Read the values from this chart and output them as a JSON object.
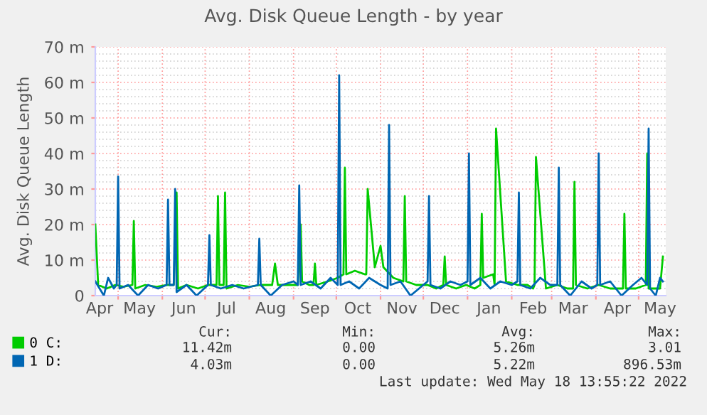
{
  "chart_data": {
    "type": "line",
    "title": "Avg. Disk Queue Length - by year",
    "ylabel": "Avg. Disk Queue Length",
    "xlim": [
      "2021-04-15",
      "2022-05-20"
    ],
    "xticks": [
      {
        "value": "2021-05-01",
        "label": null
      },
      {
        "value": "2021-06-01",
        "label": null
      },
      {
        "value": "2021-07-01",
        "label": null
      },
      {
        "value": "2021-08-01",
        "label": null
      },
      {
        "value": "2021-09-01",
        "label": null
      },
      {
        "value": "2021-10-01",
        "label": null
      },
      {
        "value": "2021-11-01",
        "label": null
      },
      {
        "value": "2021-12-01",
        "label": null
      },
      {
        "value": "2022-01-01",
        "label": null
      },
      {
        "value": "2022-02-01",
        "label": null
      },
      {
        "value": "2022-03-01",
        "label": null
      },
      {
        "value": "2022-04-01",
        "label": null
      },
      {
        "value": "2022-05-01",
        "label": null
      },
      {
        "value": "2021-04-18",
        "label": "Apr"
      },
      {
        "value": "2021-05-16",
        "label": "May"
      },
      {
        "value": "2021-06-16",
        "label": "Jun"
      },
      {
        "value": "2021-07-16",
        "label": "Jul"
      },
      {
        "value": "2021-08-16",
        "label": "Aug"
      },
      {
        "value": "2021-09-16",
        "label": "Sep"
      },
      {
        "value": "2021-10-16",
        "label": "Oct"
      },
      {
        "value": "2021-11-16",
        "label": "Nov"
      },
      {
        "value": "2021-12-16",
        "label": "Dec"
      },
      {
        "value": "2022-01-16",
        "label": "Jan"
      },
      {
        "value": "2022-02-16",
        "label": "Feb"
      },
      {
        "value": "2022-03-16",
        "label": "Mar"
      },
      {
        "value": "2022-04-16",
        "label": "Apr"
      },
      {
        "value": "2022-05-16",
        "label": "May"
      }
    ],
    "ylim": [
      0,
      70
    ],
    "yticks": [
      {
        "value": 0,
        "label": "0"
      },
      {
        "value": 2,
        "label": null
      },
      {
        "value": 4,
        "label": null
      },
      {
        "value": 6,
        "label": null
      },
      {
        "value": 8,
        "label": null
      },
      {
        "value": 10,
        "label": "10 m"
      },
      {
        "value": 12,
        "label": null
      },
      {
        "value": 14,
        "label": null
      },
      {
        "value": 16,
        "label": null
      },
      {
        "value": 18,
        "label": null
      },
      {
        "value": 20,
        "label": "20 m"
      },
      {
        "value": 22,
        "label": null
      },
      {
        "value": 24,
        "label": null
      },
      {
        "value": 26,
        "label": null
      },
      {
        "value": 28,
        "label": null
      },
      {
        "value": 30,
        "label": "30 m"
      },
      {
        "value": 32,
        "label": null
      },
      {
        "value": 34,
        "label": null
      },
      {
        "value": 36,
        "label": null
      },
      {
        "value": 38,
        "label": null
      },
      {
        "value": 40,
        "label": "40 m"
      },
      {
        "value": 42,
        "label": null
      },
      {
        "value": 44,
        "label": null
      },
      {
        "value": 46,
        "label": null
      },
      {
        "value": 48,
        "label": null
      },
      {
        "value": 50,
        "label": "50 m"
      },
      {
        "value": 52,
        "label": null
      },
      {
        "value": 54,
        "label": null
      },
      {
        "value": 56,
        "label": null
      },
      {
        "value": 58,
        "label": null
      },
      {
        "value": 60,
        "label": "60 m"
      },
      {
        "value": 62,
        "label": null
      },
      {
        "value": 64,
        "label": null
      },
      {
        "value": 66,
        "label": null
      },
      {
        "value": 68,
        "label": null
      },
      {
        "value": 70,
        "label": "70 m"
      }
    ],
    "grid": true,
    "legend": "bottom",
    "marker": "none",
    "line_style": "solid",
    "series": [
      {
        "name": "0 C:",
        "color": "#00cc00",
        "x": [
          "2021-04-15",
          "2021-04-17",
          "2021-04-23",
          "2021-04-29",
          "2021-05-05",
          "2021-05-11",
          "2021-05-12",
          "2021-05-13",
          "2021-05-20",
          "2021-05-28",
          "2021-06-04",
          "2021-06-09",
          "2021-06-11",
          "2021-06-12",
          "2021-06-18",
          "2021-06-26",
          "2021-07-03",
          "2021-07-09",
          "2021-07-10",
          "2021-07-11",
          "2021-07-14",
          "2021-07-15",
          "2021-07-16",
          "2021-07-24",
          "2021-08-01",
          "2021-08-09",
          "2021-08-17",
          "2021-08-19",
          "2021-08-21",
          "2021-08-28",
          "2021-09-04",
          "2021-09-06",
          "2021-09-07",
          "2021-09-12",
          "2021-09-15",
          "2021-09-16",
          "2021-09-17",
          "2021-09-25",
          "2021-10-02",
          "2021-10-06",
          "2021-10-07",
          "2021-10-08",
          "2021-10-14",
          "2021-10-21",
          "2021-10-22",
          "2021-10-23",
          "2021-10-28",
          "2021-11-01",
          "2021-11-03",
          "2021-11-10",
          "2021-11-17",
          "2021-11-18",
          "2021-11-19",
          "2021-11-26",
          "2021-12-04",
          "2021-12-10",
          "2021-12-15",
          "2021-12-16",
          "2021-12-17",
          "2021-12-24",
          "2021-12-31",
          "2022-01-06",
          "2022-01-10",
          "2022-01-11",
          "2022-01-12",
          "2022-01-19",
          "2022-01-20",
          "2022-01-21",
          "2022-01-28",
          "2022-02-05",
          "2022-02-12",
          "2022-02-16",
          "2022-02-17",
          "2022-02-18",
          "2022-02-25",
          "2022-03-05",
          "2022-03-12",
          "2022-03-16",
          "2022-03-17",
          "2022-03-18",
          "2022-03-26",
          "2022-04-03",
          "2022-04-11",
          "2022-04-20",
          "2022-04-21",
          "2022-04-22",
          "2022-04-29",
          "2022-05-06",
          "2022-05-07",
          "2022-05-08",
          "2022-05-13",
          "2022-05-16",
          "2022-05-18"
        ],
        "values": [
          20,
          3,
          2,
          3,
          2.5,
          3,
          21,
          2,
          3,
          2.5,
          3,
          3,
          29,
          2,
          3,
          2,
          3,
          3,
          28,
          3,
          3,
          29,
          2,
          3,
          2.5,
          3,
          3,
          9,
          3,
          3,
          3,
          20,
          4,
          3,
          3,
          9,
          3,
          4,
          5,
          6,
          36,
          6,
          7,
          6,
          6,
          30,
          8,
          14,
          8,
          5,
          4,
          28,
          4,
          3,
          3,
          2,
          3,
          11,
          3,
          2,
          3,
          2,
          3,
          23,
          5,
          6,
          3,
          47,
          4,
          3,
          3,
          2,
          3,
          39,
          2,
          3,
          2,
          2,
          32,
          3,
          2,
          3,
          2,
          2,
          23,
          2,
          2,
          3,
          40,
          2,
          2,
          2,
          11
        ]
      },
      {
        "name": "1 D:",
        "color": "#0066b3",
        "x": [
          "2021-04-15",
          "2021-04-18",
          "2021-04-21",
          "2021-04-24",
          "2021-04-28",
          "2021-04-30",
          "2021-05-01",
          "2021-05-02",
          "2021-05-08",
          "2021-05-15",
          "2021-05-22",
          "2021-05-29",
          "2021-06-04",
          "2021-06-05",
          "2021-06-06",
          "2021-06-09",
          "2021-06-10",
          "2021-06-11",
          "2021-06-18",
          "2021-06-25",
          "2021-07-03",
          "2021-07-04",
          "2021-07-05",
          "2021-07-12",
          "2021-07-20",
          "2021-07-28",
          "2021-08-07",
          "2021-08-08",
          "2021-08-09",
          "2021-08-16",
          "2021-08-24",
          "2021-09-01",
          "2021-09-04",
          "2021-09-05",
          "2021-09-06",
          "2021-09-13",
          "2021-09-20",
          "2021-09-27",
          "2021-10-02",
          "2021-10-03",
          "2021-10-04",
          "2021-10-10",
          "2021-10-17",
          "2021-10-24",
          "2021-11-01",
          "2021-11-06",
          "2021-11-07",
          "2021-11-08",
          "2021-11-15",
          "2021-11-22",
          "2021-12-01",
          "2021-12-04",
          "2021-12-05",
          "2021-12-06",
          "2021-12-13",
          "2021-12-20",
          "2021-12-27",
          "2022-01-01",
          "2022-01-02",
          "2022-01-03",
          "2022-01-10",
          "2022-01-17",
          "2022-01-24",
          "2022-02-01",
          "2022-02-05",
          "2022-02-06",
          "2022-02-07",
          "2022-02-14",
          "2022-02-21",
          "2022-02-28",
          "2022-03-05",
          "2022-03-06",
          "2022-03-07",
          "2022-03-14",
          "2022-03-22",
          "2022-03-29",
          "2022-04-02",
          "2022-04-03",
          "2022-04-04",
          "2022-04-11",
          "2022-04-19",
          "2022-04-27",
          "2022-05-03",
          "2022-05-07",
          "2022-05-08",
          "2022-05-09",
          "2022-05-13",
          "2022-05-16",
          "2022-05-18"
        ],
        "values": [
          4,
          2,
          0,
          5,
          2,
          3,
          33.5,
          2,
          3,
          0,
          3,
          2,
          3,
          27,
          3,
          3,
          30,
          1,
          3,
          0,
          3,
          17,
          3,
          2,
          3,
          2,
          3,
          16,
          3,
          0,
          3,
          4,
          3,
          31,
          3,
          4,
          2,
          5,
          3,
          62,
          3,
          4,
          2,
          5,
          3,
          2,
          48,
          3,
          4,
          0,
          3,
          4,
          28,
          3,
          2,
          4,
          3,
          4,
          40,
          3,
          5,
          2,
          4,
          3,
          4,
          29,
          3,
          2,
          5,
          3,
          3,
          36,
          3,
          0,
          4,
          2,
          3,
          40,
          3,
          4,
          0,
          3,
          5,
          3,
          47,
          2,
          0,
          5,
          4
        ]
      }
    ],
    "annotations": [
      "Cur:",
      "Min:",
      "Avg:",
      "Max:",
      "11.42m",
      "0.00",
      "5.26m",
      "3.01",
      "4.03m",
      "0.00",
      "5.22m",
      "896.53m",
      "Last update: Wed May 18 13:55:22 2022"
    ]
  }
}
